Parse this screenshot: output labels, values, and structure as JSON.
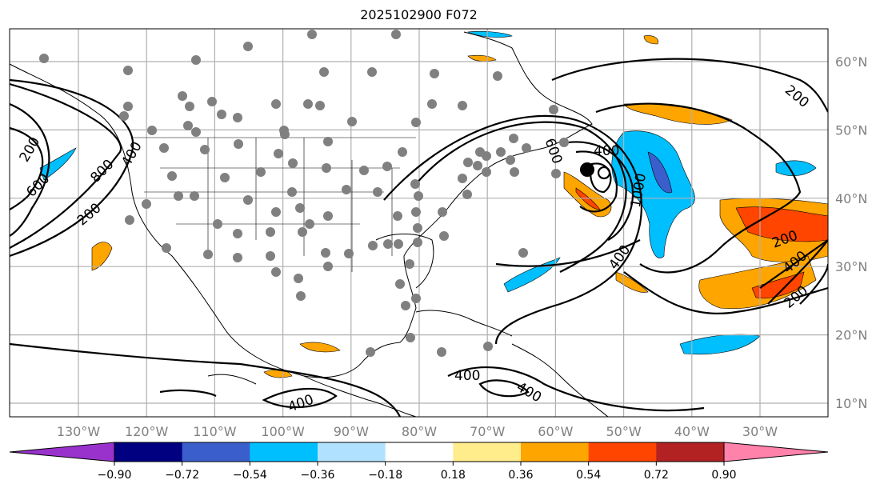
{
  "title": "2025102900 F072",
  "map": {
    "lon_labels": [
      "130°W",
      "120°W",
      "110°W",
      "100°W",
      "90°W",
      "80°W",
      "70°W",
      "60°W",
      "50°W",
      "40°W",
      "30°W"
    ],
    "lat_labels": [
      "60°N",
      "50°N",
      "40°N",
      "30°N",
      "20°N",
      "10°N"
    ],
    "contour_labels": [
      "200",
      "600",
      "800",
      "400",
      "200",
      "600",
      "400",
      "1000",
      "400",
      "200",
      "400",
      "200",
      "400",
      "400",
      "400",
      "200"
    ]
  },
  "colorbar": {
    "ticks": [
      "−0.90",
      "−0.72",
      "−0.54",
      "−0.36",
      "−0.18",
      "0.18",
      "0.36",
      "0.54",
      "0.72",
      "0.90"
    ],
    "colors": [
      "#9932cc",
      "#000080",
      "#3a5fcd",
      "#00bfff",
      "#b0e2ff",
      "#ffffff",
      "#ffec8b",
      "#ffa500",
      "#ff4500",
      "#b22222",
      "#ff82ab"
    ]
  }
}
